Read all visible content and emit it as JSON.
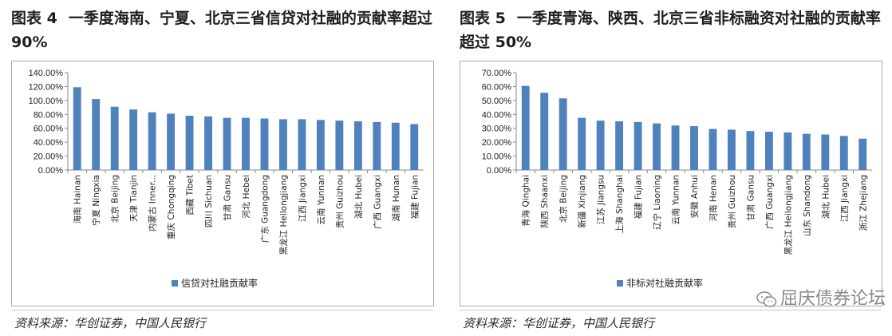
{
  "left": {
    "title_fig": "图表 4",
    "title": "一季度海南、宁夏、北京三省信贷对社融的贡献率超过 90%",
    "source": "资料来源：华创证券，中国人民银行",
    "chart_data": {
      "type": "bar",
      "categories": [
        "海南 Hainan",
        "宁夏 Ningxia",
        "北京 Beijing",
        "天津 Tianjin",
        "内蒙古 Inner...",
        "重庆 Chongqing",
        "西藏 Tibet",
        "四川 Sichuan",
        "甘肃 Gansu",
        "河北 Hebei",
        "广东 Guangdong",
        "黑龙江 Heilongjiang",
        "江西 Jiangxi",
        "云南 Yunnan",
        "贵州 Guizhou",
        "湖北 Hubei",
        "广西 Guangxi",
        "湖南 Hunan",
        "福建 Fujian"
      ],
      "series": [
        {
          "name": "信贷对社融贡献率",
          "values": [
            119,
            102,
            91,
            87,
            83,
            81,
            78,
            77,
            75,
            75,
            74,
            73,
            73,
            72,
            71,
            70,
            69,
            68,
            66
          ]
        }
      ],
      "yticks": [
        "140.00%",
        "120.00%",
        "100.00%",
        "80.00%",
        "60.00%",
        "40.00%",
        "20.00%",
        "0.00%"
      ],
      "ylim": [
        0,
        140
      ],
      "ytick_step": 20,
      "legend_position": "bottom",
      "bar_color": "#4f81bd"
    }
  },
  "right": {
    "title_fig": "图表 5",
    "title": "一季度青海、陕西、北京三省非标融资对社融的贡献率超过 50%",
    "source": "资料来源：华创证券，中国人民银行",
    "chart_data": {
      "type": "bar",
      "categories": [
        "青海 Qinghai",
        "陕西 Shaanxi",
        "北京 Beijing",
        "新疆 Xinjiang",
        "江苏 Jiangsu",
        "上海 Shanghai",
        "福建 Fujian",
        "辽宁 Liaoning",
        "云南 Yunnan",
        "安徽 Anhui",
        "河南 Henan",
        "贵州 Guizhou",
        "甘肃 Gansu",
        "广西 Guangxi",
        "黑龙江 Heilongjiang",
        "山东 Shandong",
        "湖北 Hubei",
        "江西 Jiangxi",
        "浙江 Zhejiang"
      ],
      "series": [
        {
          "name": "非标对社融贡献率",
          "values": [
            60.5,
            55.5,
            51.5,
            37.5,
            35.5,
            35,
            34.5,
            33.5,
            32,
            31.5,
            29.5,
            29,
            28,
            27.5,
            27,
            26,
            25.5,
            24.5,
            22.5
          ]
        }
      ],
      "yticks": [
        "70.00%",
        "60.00%",
        "50.00%",
        "40.00%",
        "30.00%",
        "20.00%",
        "10.00%",
        "0.00%"
      ],
      "ylim": [
        0,
        70
      ],
      "ytick_step": 10,
      "legend_position": "bottom",
      "bar_color": "#4f81bd"
    }
  },
  "watermark": {
    "text": "屈庆债券论坛",
    "icon": "wechat-icon"
  }
}
